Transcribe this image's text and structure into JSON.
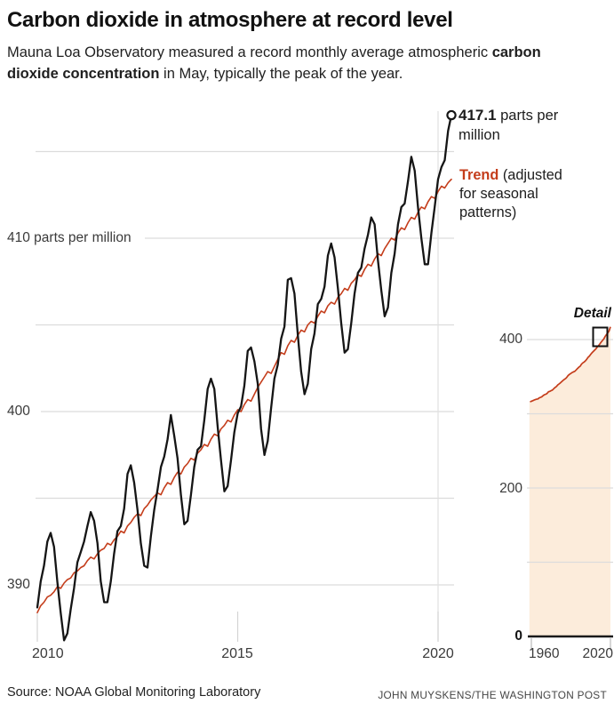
{
  "header": {
    "title": "Carbon dioxide in atmosphere at record level",
    "subtitle_line1": "Mauna Loa Observatory measured a record monthly average atmospheric",
    "subtitle_bold": "carbon dioxide concentration",
    "subtitle_rest": " in May, typically the peak of the year."
  },
  "annotations": {
    "peak_value": "417.1",
    "peak_rest": " parts per",
    "peak_line2": "million",
    "trend_bold": "Trend",
    "trend_rest": " (adjusted",
    "trend_line2": "for seasonal",
    "trend_line3": "patterns)"
  },
  "footer": {
    "source": "Source: NOAA Global Monitoring Laboratory",
    "credit": "JOHN MUYSKENS/THE WASHINGTON POST"
  },
  "colors": {
    "measured_line": "#151515",
    "trend_line": "#c43d1b",
    "grid": "#dcdcdc",
    "grid_vertical": "#e0e0e0",
    "tick": "#d4d4d4",
    "inset_fill": "#fcecdb",
    "inset_baseline": "#1a1a1a",
    "detail_box": "#111111",
    "marker_fill": "#ffffff"
  },
  "chart_data": [
    {
      "type": "line",
      "name": "monthly-co2-2010-2020",
      "title": "Monthly average atmospheric CO2 at Mauna Loa",
      "x_start_year": 2010,
      "x_step_months": 1,
      "xlim": [
        2010,
        2020.42
      ],
      "ylim": [
        386,
        418
      ],
      "grid": true,
      "yticks": [
        {
          "value": 415,
          "label": ""
        },
        {
          "value": 410,
          "label": "410 parts per million"
        },
        {
          "value": 405,
          "label": ""
        },
        {
          "value": 400,
          "label": "400"
        },
        {
          "value": 395,
          "label": ""
        },
        {
          "value": 390,
          "label": "390"
        }
      ],
      "xticks": [
        {
          "value": 2010,
          "label": "2010"
        },
        {
          "value": 2015,
          "label": "2015"
        },
        {
          "value": 2020,
          "label": "2020"
        }
      ],
      "end_point": {
        "x": 2020.333,
        "y": 417.1,
        "label": "417.1 parts per million"
      },
      "series": [
        {
          "name": "Monthly average",
          "color_key": "measured_line",
          "values": [
            388.7,
            390.2,
            391.1,
            392.5,
            393.0,
            392.2,
            390.2,
            388.4,
            386.8,
            387.2,
            388.6,
            389.8,
            391.3,
            391.9,
            392.5,
            393.4,
            394.2,
            393.7,
            392.4,
            390.2,
            389.0,
            389.0,
            390.2,
            391.8,
            393.1,
            393.4,
            394.4,
            396.4,
            396.9,
            395.9,
            394.3,
            392.4,
            391.1,
            391.0,
            392.8,
            394.3,
            395.5,
            396.8,
            397.4,
            398.4,
            399.8,
            398.6,
            397.3,
            395.2,
            393.5,
            393.7,
            395.2,
            396.8,
            397.8,
            398.0,
            399.5,
            401.3,
            401.9,
            401.3,
            399.1,
            397.2,
            395.4,
            395.7,
            397.2,
            398.8,
            399.9,
            400.3,
            401.5,
            403.5,
            403.7,
            402.9,
            401.6,
            399.0,
            397.5,
            398.3,
            400.2,
            401.9,
            402.7,
            404.2,
            404.9,
            407.6,
            407.7,
            406.8,
            404.4,
            402.3,
            401.0,
            401.6,
            403.6,
            404.5,
            406.2,
            406.5,
            407.2,
            409.0,
            409.7,
            408.9,
            407.1,
            405.1,
            403.4,
            403.6,
            405.1,
            406.8,
            408.0,
            408.3,
            409.4,
            410.2,
            411.2,
            410.8,
            408.7,
            407.0,
            405.5,
            406.0,
            408.0,
            409.1,
            410.8,
            411.8,
            412.0,
            413.3,
            414.7,
            413.9,
            411.8,
            410.0,
            408.5,
            408.5,
            410.3,
            411.8,
            413.4,
            414.1,
            414.5,
            416.2,
            417.1
          ]
        },
        {
          "name": "Trend (adjusted for seasonal patterns)",
          "color_key": "trend_line",
          "values": [
            388.4,
            388.8,
            389.0,
            389.3,
            389.4,
            389.6,
            389.9,
            389.8,
            390.1,
            390.3,
            390.4,
            390.7,
            390.8,
            391.0,
            391.1,
            391.4,
            391.6,
            391.5,
            391.8,
            392.0,
            392.1,
            392.4,
            392.3,
            392.6,
            392.8,
            393.1,
            393.0,
            393.4,
            393.6,
            393.9,
            394.1,
            394.0,
            394.4,
            394.6,
            394.9,
            395.1,
            395.3,
            395.2,
            395.6,
            395.9,
            395.8,
            396.2,
            396.5,
            396.4,
            396.8,
            397.0,
            397.3,
            397.2,
            397.6,
            397.8,
            398.1,
            398.0,
            398.4,
            398.7,
            398.6,
            399.0,
            399.2,
            399.5,
            399.4,
            399.8,
            400.1,
            400.0,
            400.4,
            400.7,
            400.6,
            401.0,
            401.4,
            401.7,
            402.0,
            402.3,
            402.2,
            402.6,
            403.0,
            403.4,
            403.3,
            403.8,
            404.1,
            404.0,
            404.4,
            404.7,
            404.6,
            405.0,
            405.2,
            405.1,
            405.5,
            405.8,
            405.7,
            406.1,
            406.3,
            406.2,
            406.6,
            406.8,
            407.1,
            407.0,
            407.4,
            407.6,
            407.9,
            407.8,
            408.2,
            408.5,
            408.4,
            408.8,
            409.1,
            409.0,
            409.4,
            409.7,
            410.0,
            409.9,
            410.3,
            410.6,
            410.5,
            410.9,
            411.2,
            411.1,
            411.5,
            411.8,
            411.7,
            412.1,
            412.4,
            412.3,
            412.7,
            413.0,
            412.9,
            413.2,
            413.4
          ]
        }
      ]
    },
    {
      "type": "area",
      "name": "annual-co2-1959-2020-detail-inset",
      "title": "Detail",
      "detail_label": "Detail",
      "x_start_year": 1959,
      "x_step_years": 1,
      "xlim": [
        1958,
        2020.4
      ],
      "ylim": [
        0,
        440
      ],
      "grid": true,
      "yticks": [
        {
          "value": 400,
          "label": "400"
        },
        {
          "value": 300,
          "label": ""
        },
        {
          "value": 200,
          "label": "200"
        },
        {
          "value": 100,
          "label": ""
        },
        {
          "value": 0,
          "label": "0"
        }
      ],
      "xticks": [
        {
          "value": 1960,
          "label": "1960"
        },
        {
          "value": 2020,
          "label": "2020"
        }
      ],
      "values": [
        316.0,
        316.9,
        317.6,
        318.5,
        319.0,
        319.6,
        320.0,
        321.4,
        322.2,
        323.0,
        324.6,
        325.7,
        326.3,
        327.5,
        329.7,
        330.2,
        331.1,
        332.0,
        333.8,
        335.4,
        336.8,
        338.8,
        340.1,
        341.5,
        343.2,
        344.9,
        346.3,
        347.6,
        349.3,
        351.7,
        353.2,
        354.4,
        355.7,
        356.5,
        357.2,
        359.0,
        361.0,
        362.7,
        363.9,
        366.8,
        368.5,
        369.7,
        371.3,
        373.4,
        376.0,
        377.7,
        380.0,
        382.1,
        384.0,
        385.8,
        387.6,
        390.1,
        391.9,
        394.1,
        396.7,
        398.8,
        401.0,
        404.4,
        406.8,
        408.7,
        411.7,
        417.1
      ]
    }
  ]
}
